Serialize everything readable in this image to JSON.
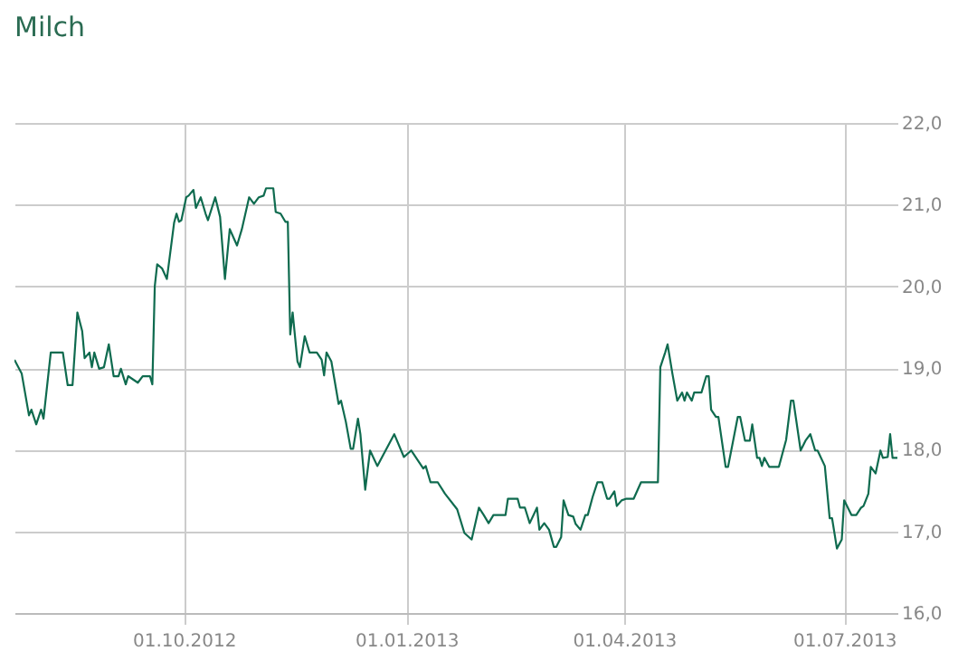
{
  "chart_data": {
    "type": "line",
    "title": "Milch",
    "x": [
      "2012-07-23",
      "2012-07-26",
      "2012-07-29",
      "2012-07-30",
      "2012-08-01",
      "2012-08-03",
      "2012-08-04",
      "2012-08-07",
      "2012-08-12",
      "2012-08-14",
      "2012-08-16",
      "2012-08-18",
      "2012-08-20",
      "2012-08-21",
      "2012-08-23",
      "2012-08-24",
      "2012-08-25",
      "2012-08-27",
      "2012-08-29",
      "2012-08-31",
      "2012-09-02",
      "2012-09-04",
      "2012-09-05",
      "2012-09-07",
      "2012-09-08",
      "2012-09-12",
      "2012-09-14",
      "2012-09-17",
      "2012-09-18",
      "2012-09-19",
      "2012-09-20",
      "2012-09-22",
      "2012-09-24",
      "2012-09-27",
      "2012-09-28",
      "2012-09-29",
      "2012-09-30",
      "2012-10-02",
      "2012-10-03",
      "2012-10-05",
      "2012-10-06",
      "2012-10-08",
      "2012-10-10",
      "2012-10-11",
      "2012-10-14",
      "2012-10-16",
      "2012-10-18",
      "2012-10-20",
      "2012-10-23",
      "2012-10-25",
      "2012-10-28",
      "2012-10-30",
      "2012-11-01",
      "2012-11-03",
      "2012-11-04",
      "2012-11-07",
      "2012-11-08",
      "2012-11-10",
      "2012-11-12",
      "2012-11-13",
      "2012-11-14",
      "2012-11-15",
      "2012-11-17",
      "2012-11-18",
      "2012-11-20",
      "2012-11-22",
      "2012-11-25",
      "2012-11-27",
      "2012-11-28",
      "2012-11-29",
      "2012-12-01",
      "2012-12-04",
      "2012-12-05",
      "2012-12-07",
      "2012-12-09",
      "2012-12-10",
      "2012-12-12",
      "2012-12-13",
      "2012-12-15",
      "2012-12-17",
      "2012-12-20",
      "2012-12-27",
      "2012-12-31",
      "2013-01-03",
      "2013-01-08",
      "2013-01-09",
      "2013-01-11",
      "2013-01-14",
      "2013-01-17",
      "2013-01-22",
      "2013-01-25",
      "2013-01-28",
      "2013-01-31",
      "2013-02-02",
      "2013-02-04",
      "2013-02-06",
      "2013-02-11",
      "2013-02-12",
      "2013-02-16",
      "2013-02-17",
      "2013-02-19",
      "2013-02-21",
      "2013-02-24",
      "2013-02-25",
      "2013-02-27",
      "2013-03-01",
      "2013-03-03",
      "2013-03-04",
      "2013-03-06",
      "2013-03-07",
      "2013-03-09",
      "2013-03-11",
      "2013-03-12",
      "2013-03-14",
      "2013-03-16",
      "2013-03-17",
      "2013-03-19",
      "2013-03-21",
      "2013-03-23",
      "2013-03-25",
      "2013-03-26",
      "2013-03-28",
      "2013-03-29",
      "2013-03-31",
      "2013-04-02",
      "2013-04-05",
      "2013-04-08",
      "2013-04-15",
      "2013-04-16",
      "2013-04-18",
      "2013-04-19",
      "2013-04-21",
      "2013-04-23",
      "2013-04-25",
      "2013-04-26",
      "2013-04-27",
      "2013-04-29",
      "2013-04-30",
      "2013-05-03",
      "2013-05-05",
      "2013-05-06",
      "2013-05-07",
      "2013-05-09",
      "2013-05-10",
      "2013-05-13",
      "2013-05-14",
      "2013-05-18",
      "2013-05-19",
      "2013-05-21",
      "2013-05-23",
      "2013-05-24",
      "2013-05-26",
      "2013-05-27",
      "2013-05-28",
      "2013-05-29",
      "2013-05-31",
      "2013-06-04",
      "2013-06-07",
      "2013-06-09",
      "2013-06-10",
      "2013-06-13",
      "2013-06-15",
      "2013-06-17",
      "2013-06-19",
      "2013-06-20",
      "2013-06-23",
      "2013-06-25",
      "2013-06-26",
      "2013-06-28",
      "2013-06-30",
      "2013-07-01",
      "2013-07-04",
      "2013-07-06",
      "2013-07-08",
      "2013-07-09",
      "2013-07-11",
      "2013-07-12",
      "2013-07-14",
      "2013-07-16",
      "2013-07-17",
      "2013-07-19",
      "2013-07-20",
      "2013-07-21",
      "2013-07-23"
    ],
    "series": [
      {
        "color": "#0f6b4f",
        "values": [
          19.1,
          18.93,
          18.42,
          18.49,
          18.31,
          18.49,
          18.38,
          19.19,
          19.19,
          18.79,
          18.79,
          19.68,
          19.45,
          19.12,
          19.19,
          19.01,
          19.19,
          18.99,
          19.01,
          19.29,
          18.9,
          18.9,
          18.99,
          18.8,
          18.9,
          18.82,
          18.9,
          18.9,
          18.8,
          20.0,
          20.27,
          20.22,
          20.09,
          20.78,
          20.89,
          20.79,
          20.81,
          21.09,
          21.11,
          21.18,
          20.96,
          21.09,
          20.89,
          20.81,
          21.09,
          20.85,
          20.09,
          20.7,
          20.5,
          20.7,
          21.09,
          21.01,
          21.09,
          21.11,
          21.2,
          21.2,
          20.91,
          20.89,
          20.79,
          20.79,
          19.41,
          19.68,
          19.08,
          19.01,
          19.39,
          19.19,
          19.19,
          19.1,
          18.91,
          19.19,
          19.08,
          18.56,
          18.6,
          18.34,
          18.01,
          18.01,
          18.38,
          18.19,
          17.51,
          17.99,
          17.8,
          18.19,
          17.91,
          17.99,
          17.77,
          17.8,
          17.6,
          17.6,
          17.46,
          17.27,
          16.98,
          16.9,
          17.29,
          17.2,
          17.1,
          17.2,
          17.2,
          17.4,
          17.4,
          17.29,
          17.29,
          17.1,
          17.29,
          17.02,
          17.1,
          17.02,
          16.81,
          16.81,
          16.93,
          17.38,
          17.2,
          17.18,
          17.09,
          17.02,
          17.2,
          17.2,
          17.42,
          17.6,
          17.6,
          17.4,
          17.4,
          17.49,
          17.31,
          17.38,
          17.4,
          17.4,
          17.6,
          17.6,
          19.01,
          19.19,
          19.29,
          18.93,
          18.6,
          18.7,
          18.6,
          18.7,
          18.6,
          18.7,
          18.7,
          18.9,
          18.9,
          18.49,
          18.4,
          18.4,
          17.79,
          17.79,
          18.4,
          18.4,
          18.11,
          18.11,
          18.31,
          17.9,
          17.9,
          17.8,
          17.9,
          17.79,
          17.79,
          18.12,
          18.6,
          18.6,
          17.99,
          18.11,
          18.19,
          17.99,
          17.99,
          17.8,
          17.16,
          17.16,
          16.79,
          16.9,
          17.38,
          17.2,
          17.2,
          17.29,
          17.31,
          17.46,
          17.79,
          17.71,
          17.99,
          17.9,
          17.91,
          18.19,
          17.9,
          17.9
        ]
      }
    ],
    "xlim": [
      "2012-07-23",
      "2013-07-23"
    ],
    "xticks": [
      {
        "value": "2012-10-01",
        "label": "01.10.2012"
      },
      {
        "value": "2013-01-01",
        "label": "01.01.2013"
      },
      {
        "value": "2013-04-01",
        "label": "01.04.2013"
      },
      {
        "value": "2013-07-01",
        "label": "01.07.2013"
      }
    ],
    "ylim": [
      16,
      22
    ],
    "yticks": [
      {
        "value": 16,
        "label": "16,0"
      },
      {
        "value": 17,
        "label": "17,0"
      },
      {
        "value": 18,
        "label": "18,0"
      },
      {
        "value": 19,
        "label": "19,0"
      },
      {
        "value": 20,
        "label": "20,0"
      },
      {
        "value": 21,
        "label": "21,0"
      },
      {
        "value": 22,
        "label": "22,0"
      }
    ],
    "grid": true
  }
}
